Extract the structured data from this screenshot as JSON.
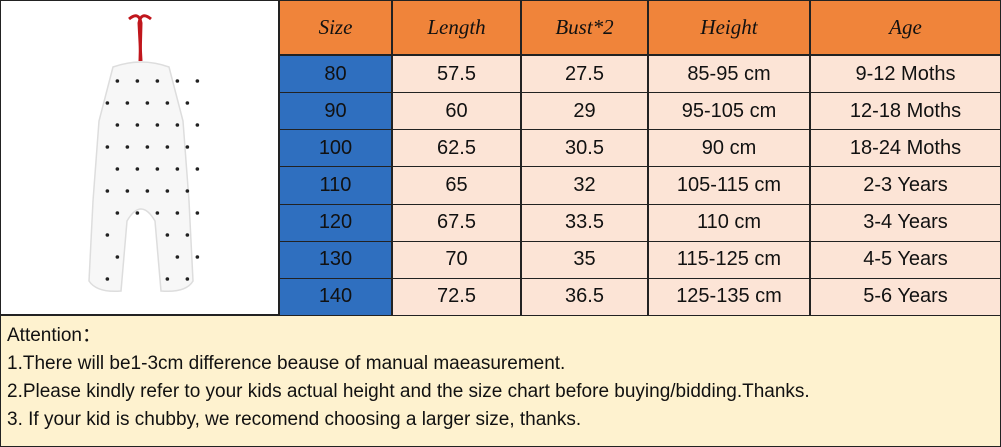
{
  "table": {
    "columns": [
      "Size",
      "Length",
      "Bust*2",
      "Height",
      "Age"
    ],
    "rows": [
      [
        "80",
        "57.5",
        "27.5",
        "85-95 cm",
        "9-12 Moths"
      ],
      [
        "90",
        "60",
        "29",
        "95-105 cm",
        "12-18 Moths"
      ],
      [
        "100",
        "62.5",
        "30.5",
        "90 cm",
        "18-24 Moths"
      ],
      [
        "110",
        "65",
        "32",
        "105-115 cm",
        "2-3 Years"
      ],
      [
        "120",
        "67.5",
        "33.5",
        "110 cm",
        "3-4 Years"
      ],
      [
        "130",
        "70",
        "35",
        "115-125 cm",
        "4-5 Years"
      ],
      [
        "140",
        "72.5",
        "36.5",
        "125-135 cm",
        "5-6 Years"
      ]
    ]
  },
  "note": {
    "lines": [
      "Attention：",
      "1.There will be1-3cm difference beause of manual maeasurement.",
      "2.Please kindly refer to your kids actual height and the size chart before buying/bidding.Thanks.",
      "3. If your kid is chubby, we recomend choosing a larger size, thanks."
    ]
  }
}
